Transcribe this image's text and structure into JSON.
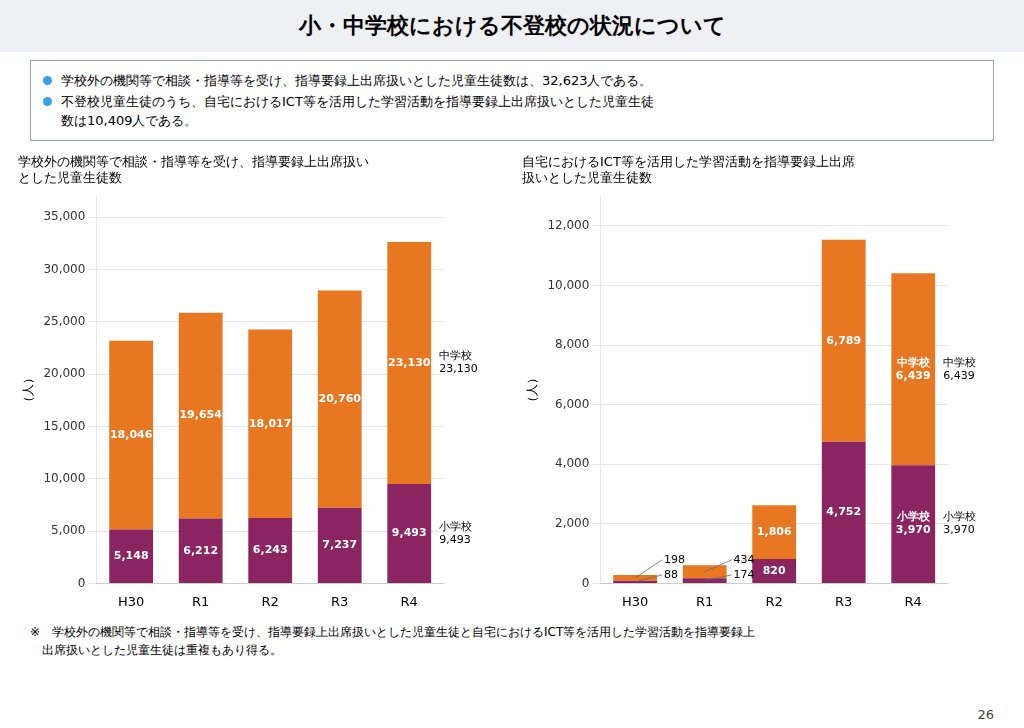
{
  "title": "小・中学校における不登校の状況について",
  "bullets": [
    [
      "学校外の機関等で相談・指導等を受け、指導要録上出席扱いとした児童生徒数は、32,623人である。"
    ],
    [
      "不登校児童生徒のうち、自宅におけるICT等を活用した学習活動を指導要録上出席扱いとした児童生徒",
      "数は10,409人である。"
    ]
  ],
  "chart_data": [
    {
      "type": "bar",
      "stacked": true,
      "title": [
        "学校外の機関等で相談・指導等を受け、指導要録上出席扱い",
        "とした児童生徒数"
      ],
      "ylabel": "（人）",
      "categories": [
        "H30",
        "R1",
        "R2",
        "R3",
        "R4"
      ],
      "series": [
        {
          "name": "小学校",
          "color": "#8b2561",
          "values": [
            5148,
            6212,
            6243,
            7237,
            9493
          ],
          "value_labels": [
            "5,148",
            "6,212",
            "6,243",
            "7,237",
            "9,493"
          ]
        },
        {
          "name": "中学校",
          "color": "#e87722",
          "values": [
            18046,
            19654,
            18017,
            20760,
            23130
          ],
          "value_labels": [
            "18,046",
            "19,654",
            "18,017",
            "20,760",
            "23,130"
          ]
        }
      ],
      "ylim": [
        0,
        37000
      ],
      "yticks": [
        0,
        {
          "value": 5000,
          "label": "5,000"
        },
        {
          "value": 10000,
          "label": "10,000"
        },
        {
          "value": 15000,
          "label": "15,000"
        },
        {
          "value": 20000,
          "label": "20,000"
        },
        {
          "value": 25000,
          "label": "25,000"
        },
        {
          "value": 30000,
          "label": "30,000"
        },
        {
          "value": 35000,
          "label": "35,000"
        }
      ],
      "grid": true,
      "data_labels": true,
      "annotations": [
        {
          "category": "R4",
          "series": "中学校",
          "text": "中学校\n23,130"
        },
        {
          "category": "R4",
          "series": "小学校",
          "text": "小学校\n9,493"
        }
      ]
    },
    {
      "type": "bar",
      "stacked": true,
      "title": [
        "自宅におけるICT等を活用した学習活動を指導要録上出席",
        "扱いとした児童生徒数"
      ],
      "ylabel": "（人）",
      "categories": [
        "H30",
        "R1",
        "R2",
        "R3",
        "R4"
      ],
      "series": [
        {
          "name": "小学校",
          "color": "#8b2561",
          "values": [
            88,
            174,
            820,
            4752,
            3970
          ],
          "value_labels": [
            "88",
            "174",
            "820",
            "4,752",
            "小学校\n3,970"
          ]
        },
        {
          "name": "中学校",
          "color": "#e87722",
          "values": [
            198,
            434,
            1806,
            6789,
            6439
          ],
          "value_labels": [
            "198",
            "434",
            "1,806",
            "6,789",
            "中学校\n6,439"
          ]
        }
      ],
      "ylim": [
        0,
        13000
      ],
      "yticks": [
        0,
        {
          "value": 2000,
          "label": "2,000"
        },
        {
          "value": 4000,
          "label": "4,000"
        },
        {
          "value": 6000,
          "label": "6,000"
        },
        {
          "value": 8000,
          "label": "8,000"
        },
        {
          "value": 10000,
          "label": "10,000"
        },
        {
          "value": 12000,
          "label": "12,000"
        }
      ],
      "grid": true,
      "data_labels": true,
      "annotations": [
        {
          "category": "R4",
          "series": "中学校",
          "text": "中学校\n6,439"
        },
        {
          "category": "R4",
          "series": "小学校",
          "text": "小学校\n3,970"
        }
      ]
    }
  ],
  "footnotes": [
    "※　学校外の機関等で相談・指導等を受け、指導要録上出席扱いとした児童生徒と自宅におけるICT等を活用した学習活動を指導要録上",
    "　出席扱いとした児童生徒は重複もあり得る。"
  ],
  "page_number": "26"
}
